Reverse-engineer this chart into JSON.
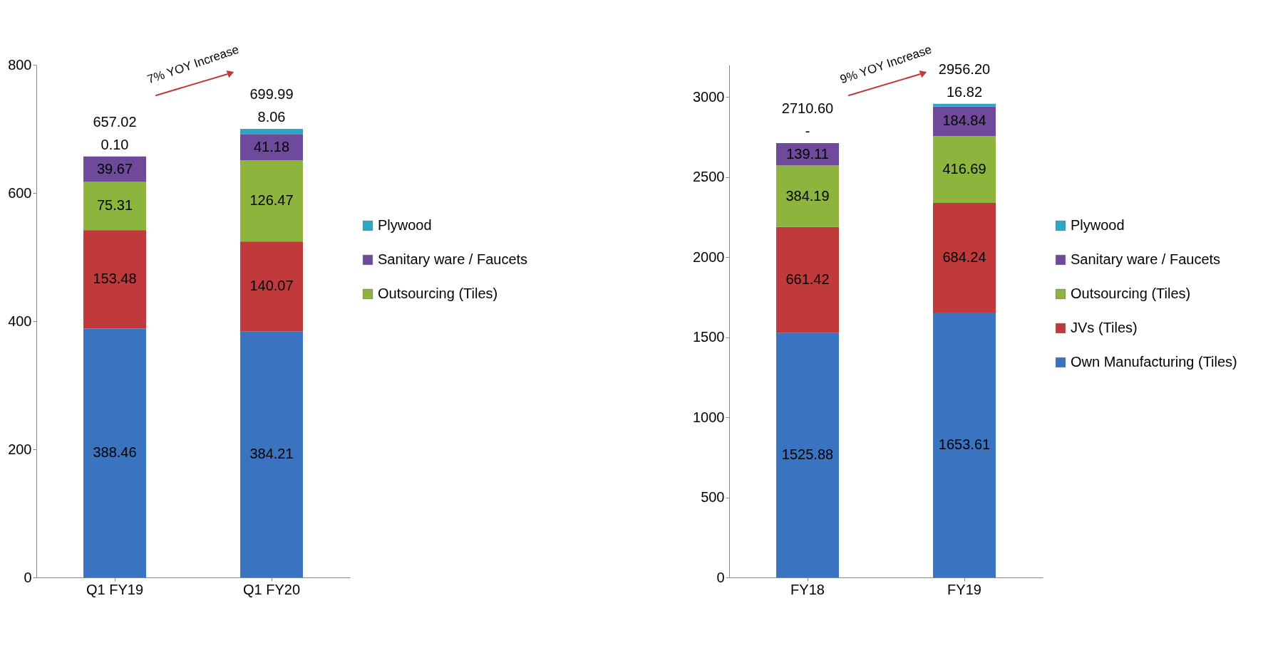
{
  "chart_data": [
    {
      "type": "bar",
      "stacked": true,
      "categories": [
        "Q1 FY19",
        "Q1 FY20"
      ],
      "ylim": [
        0,
        800
      ],
      "yticks": [
        0,
        200,
        400,
        600,
        800
      ],
      "legend": "right",
      "series": [
        {
          "color": "#3a73c0",
          "values": [
            388.46,
            384.21
          ],
          "value_labels": [
            "388.46",
            "384.21"
          ]
        },
        {
          "color": "#c0393b",
          "values": [
            153.48,
            140.07
          ],
          "value_labels": [
            "153.48",
            "140.07"
          ]
        },
        {
          "name": "Outsourcing (Tiles)",
          "color": "#8db43c",
          "values": [
            75.31,
            126.47
          ],
          "value_labels": [
            "75.31",
            "126.47"
          ]
        },
        {
          "name": "Sanitary ware / Faucets",
          "color": "#6f4a9a",
          "values": [
            39.67,
            41.18
          ],
          "value_labels": [
            "39.67",
            "41.18"
          ]
        },
        {
          "name": "Plywood",
          "color": "#2aa8c8",
          "values": [
            0.1,
            8.06
          ],
          "value_labels": [
            "0.10",
            "8.06"
          ]
        }
      ],
      "totals": [
        "657.02",
        "699.99"
      ],
      "annotations": [
        "7% YOY Increase"
      ]
    },
    {
      "type": "bar",
      "stacked": true,
      "categories": [
        "FY18",
        "FY19"
      ],
      "ylim": [
        0,
        3200
      ],
      "yticks": [
        0,
        500,
        1000,
        1500,
        2000,
        2500,
        3000
      ],
      "legend": "right",
      "series": [
        {
          "name": "Own Manufacturing (Tiles)",
          "color": "#3a73c0",
          "values": [
            1525.88,
            1653.61
          ],
          "value_labels": [
            "1525.88",
            "1653.61"
          ]
        },
        {
          "name": "JVs (Tiles)",
          "color": "#c0393b",
          "values": [
            661.42,
            684.24
          ],
          "value_labels": [
            "661.42",
            "684.24"
          ]
        },
        {
          "name": "Outsourcing (Tiles)",
          "color": "#8db43c",
          "values": [
            384.19,
            416.69
          ],
          "value_labels": [
            "384.19",
            "416.69"
          ]
        },
        {
          "name": "Sanitary ware / Faucets",
          "color": "#6f4a9a",
          "values": [
            139.11,
            184.84
          ],
          "value_labels": [
            "139.11",
            "184.84"
          ]
        },
        {
          "name": "Plywood",
          "color": "#2aa8c8",
          "values": [
            0,
            16.82
          ],
          "value_labels": [
            "-",
            "16.82"
          ]
        }
      ],
      "totals": [
        "2710.60",
        "2956.20"
      ],
      "annotations": [
        "9% YOY Increase"
      ]
    }
  ]
}
